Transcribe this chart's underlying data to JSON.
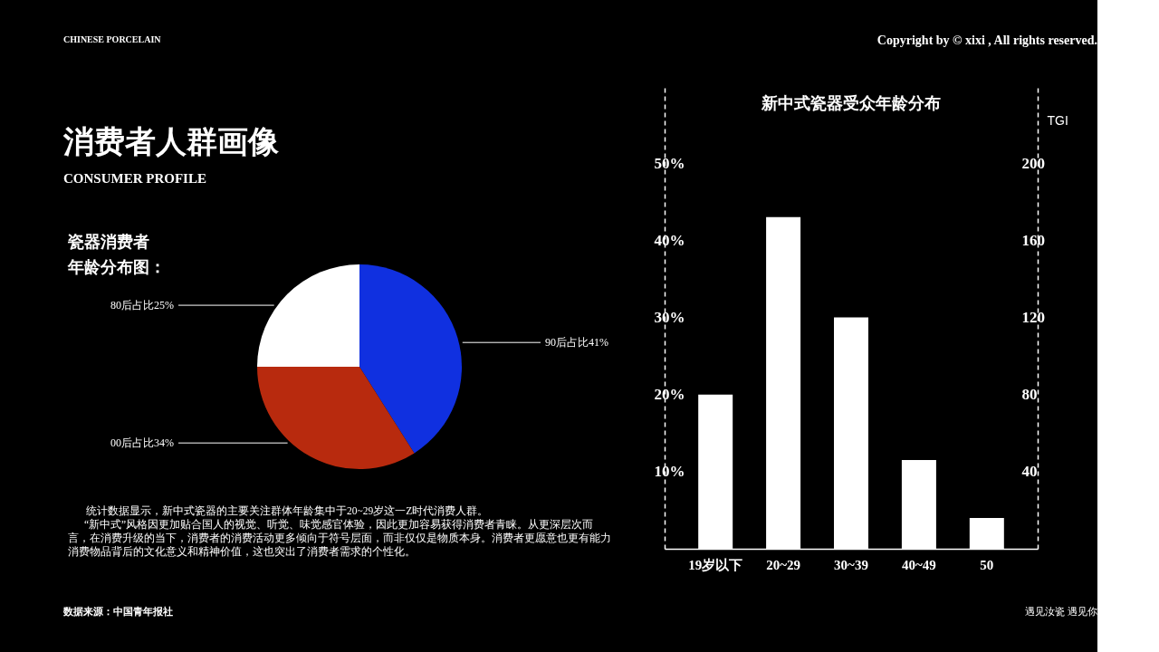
{
  "chart_data": [
    {
      "type": "pie",
      "title": "瓷器消费者年龄分布图：",
      "categories": [
        "90后占比41%",
        "00后占比34%",
        "80后占比25%"
      ],
      "values": [
        41,
        34,
        25
      ],
      "colors": [
        "#1030e0",
        "#b82a0e",
        "#ffffff"
      ],
      "annotations": [
        "CHINESE PORCELAIN",
        "消费者人群画像",
        "CONSUMER PROFILE",
        "统计数据显示，新中式瓷器的主要关注群体年龄集中于20~29岁这一Z时代消费人群。",
        "“新中式”风格因更加贴合国人的视觉、听觉、味觉感官体验，因此更加容易获得消费者青睐。从更深层次而言，在消费升级的当下，消费者的消费活动更多倾向于符号层面，而非仅仅是物质本身。消费者更愿意也更有能力消费物品背后的文化意义和精神价值，这也突出了消费者需求的个性化。",
        "数据来源：中国青年报社"
      ]
    },
    {
      "type": "bar",
      "title": "新中式瓷器受众年龄分布",
      "categories": [
        "19岁以下",
        "20~29",
        "30~39",
        "40~49",
        "50"
      ],
      "values": [
        20,
        43,
        30,
        11.5,
        4
      ],
      "color": "#ffffff",
      "ylim": [
        0,
        60
      ],
      "yticks": [
        {
          "value": 10,
          "label": "10%"
        },
        {
          "value": 20,
          "label": "20%"
        },
        {
          "value": 30,
          "label": "30%"
        },
        {
          "value": 40,
          "label": "40%"
        },
        {
          "value": 50,
          "label": "50%"
        }
      ],
      "y2label": "TGI",
      "y2lim": [
        0,
        240
      ],
      "y2ticks": [
        40,
        80,
        120,
        160,
        200
      ],
      "grid": false,
      "annotations": [
        "Copyright by © xixi , All rights reserved.",
        "遇见汝瓷 遇见你"
      ]
    }
  ]
}
